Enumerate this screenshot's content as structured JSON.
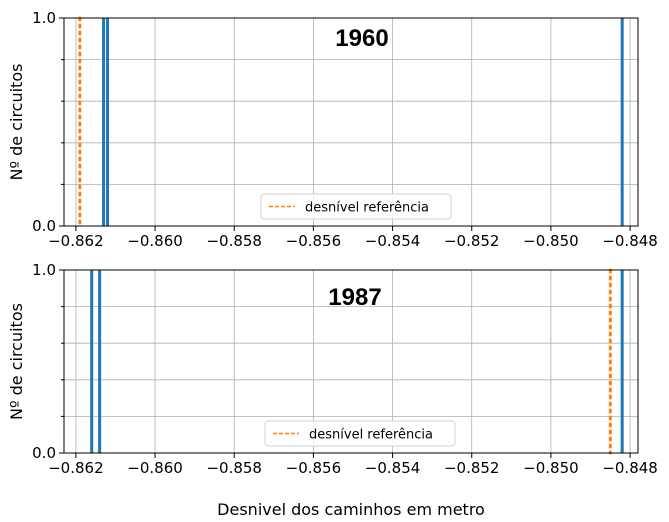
{
  "chart_data": [
    {
      "type": "histogram",
      "title": "1960",
      "ylabel": "Nº de circuitos",
      "xlabel": "",
      "xlim": [
        -0.8623,
        -0.8478
      ],
      "ylim": [
        0.0,
        1.0
      ],
      "xticks": [
        -0.862,
        -0.86,
        -0.858,
        -0.856,
        -0.854,
        -0.852,
        -0.85,
        -0.848
      ],
      "xtick_labels": [
        "−0.862",
        "−0.860",
        "−0.858",
        "−0.856",
        "−0.854",
        "−0.852",
        "−0.850",
        "−0.848"
      ],
      "ytick_labels": [
        "0.0",
        "1.0"
      ],
      "grid": true,
      "bars": [
        {
          "x": -0.8613,
          "count": 1
        },
        {
          "x": -0.8612,
          "count": 1
        },
        {
          "x": -0.8482,
          "count": 1
        }
      ],
      "reference_line": {
        "x": -0.8619,
        "label": "desnível referência",
        "color": "#ff7f0e",
        "style": "dotted"
      },
      "bar_color": "#1f77b4",
      "legend_position": "lower center"
    },
    {
      "type": "histogram",
      "title": "1987",
      "ylabel": "Nº de circuitos",
      "xlabel": "Desnivel dos caminhos em metro",
      "xlim": [
        -0.8623,
        -0.8478
      ],
      "ylim": [
        0.0,
        1.0
      ],
      "xticks": [
        -0.862,
        -0.86,
        -0.858,
        -0.856,
        -0.854,
        -0.852,
        -0.85,
        -0.848
      ],
      "xtick_labels": [
        "−0.862",
        "−0.860",
        "−0.858",
        "−0.856",
        "−0.854",
        "−0.852",
        "−0.850",
        "−0.848"
      ],
      "ytick_labels": [
        "0.0",
        "1.0"
      ],
      "grid": true,
      "bars": [
        {
          "x": -0.8616,
          "count": 1
        },
        {
          "x": -0.8614,
          "count": 1
        },
        {
          "x": -0.8482,
          "count": 1
        }
      ],
      "reference_line": {
        "x": -0.8485,
        "label": "desnível referência",
        "color": "#ff7f0e",
        "style": "dotted"
      },
      "bar_color": "#1f77b4",
      "legend_position": "lower center"
    }
  ]
}
